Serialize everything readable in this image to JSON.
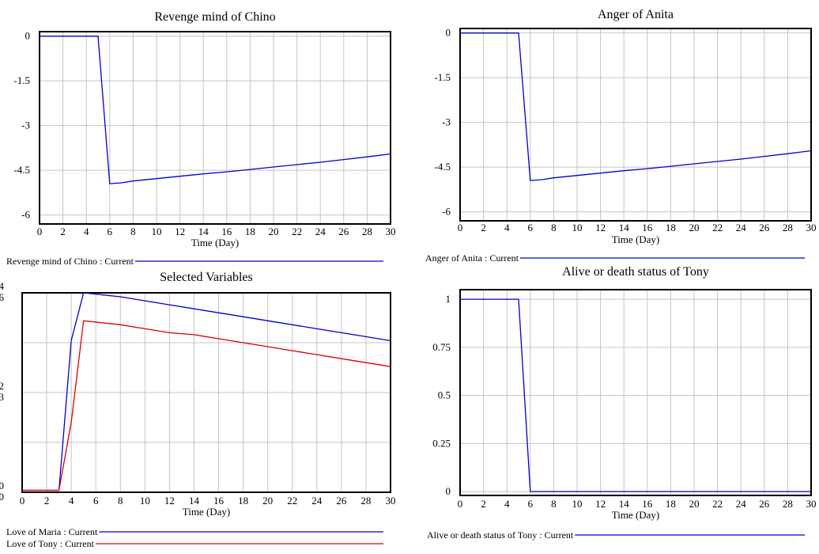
{
  "chart_data": [
    {
      "type": "line",
      "title": "Revenge mind of Chino",
      "xlabel": "Time (Day)",
      "xlim": [
        0,
        30
      ],
      "ylim": [
        -6.3,
        0.15
      ],
      "x_ticks": [
        0,
        2,
        4,
        6,
        8,
        10,
        12,
        14,
        16,
        18,
        20,
        22,
        24,
        26,
        28,
        30
      ],
      "y_ticks": [
        0,
        -1.5,
        -3,
        -4.5,
        -6
      ],
      "y_tick_labels": [
        "0",
        "-1.5",
        "-3",
        "-4.5",
        "-6"
      ],
      "grid": true,
      "series": [
        {
          "name": "Revenge mind of Chino : Current",
          "color": "#0000cc",
          "x": [
            0,
            5,
            6,
            7,
            8,
            10,
            12,
            14,
            16,
            18,
            20,
            22,
            24,
            26,
            28,
            30
          ],
          "y": [
            0,
            0,
            -4.95,
            -4.92,
            -4.86,
            -4.78,
            -4.7,
            -4.62,
            -4.55,
            -4.47,
            -4.39,
            -4.31,
            -4.23,
            -4.14,
            -4.05,
            -3.95
          ]
        }
      ]
    },
    {
      "type": "line",
      "title": "Anger of Anita",
      "xlabel": "Time (Day)",
      "xlim": [
        0,
        30
      ],
      "ylim": [
        -6.3,
        0.15
      ],
      "x_ticks": [
        0,
        2,
        4,
        6,
        8,
        10,
        12,
        14,
        16,
        18,
        20,
        22,
        24,
        26,
        28,
        30
      ],
      "y_ticks": [
        0,
        -1.5,
        -3,
        -4.5,
        -6
      ],
      "y_tick_labels": [
        "0",
        "-1.5",
        "-3",
        "-4.5",
        "-6"
      ],
      "grid": true,
      "series": [
        {
          "name": "Anger of Anita : Current",
          "color": "#0000cc",
          "x": [
            0,
            5,
            6,
            7,
            8,
            10,
            12,
            14,
            16,
            18,
            20,
            22,
            24,
            26,
            28,
            30
          ],
          "y": [
            0,
            0,
            -4.95,
            -4.92,
            -4.86,
            -4.78,
            -4.7,
            -4.62,
            -4.55,
            -4.47,
            -4.39,
            -4.31,
            -4.23,
            -4.14,
            -4.05,
            -3.95
          ]
        }
      ]
    },
    {
      "type": "line",
      "title": "Selected Variables",
      "xlabel": "Time (Day)",
      "xlim": [
        0,
        30
      ],
      "ylim": [
        0,
        1
      ],
      "x_ticks": [
        0,
        2,
        4,
        6,
        8,
        10,
        12,
        14,
        16,
        18,
        20,
        22,
        24,
        26,
        28,
        30
      ],
      "y_ticks": [
        0,
        0.25,
        0.5,
        0.75,
        1
      ],
      "y_tick_labels": [
        "0\n0",
        "",
        "2\n3",
        "",
        "4\n6"
      ],
      "grid": true,
      "series": [
        {
          "name": "Love of Maria : Current",
          "color": "#0000cc",
          "x": [
            0,
            3,
            4,
            5,
            8,
            10,
            12,
            14,
            16,
            18,
            20,
            22,
            24,
            26,
            28,
            30
          ],
          "y": [
            0.01,
            0.01,
            0.76,
            1.0,
            0.98,
            0.96,
            0.94,
            0.92,
            0.9,
            0.88,
            0.86,
            0.84,
            0.82,
            0.8,
            0.78,
            0.76
          ]
        },
        {
          "name": "Love of Tony : Current",
          "color": "#dd0000",
          "x": [
            0,
            3,
            4,
            5,
            8,
            10,
            12,
            14,
            16,
            18,
            20,
            22,
            24,
            26,
            28,
            30
          ],
          "y": [
            0.01,
            0.01,
            0.35,
            0.86,
            0.84,
            0.82,
            0.8,
            0.79,
            0.77,
            0.75,
            0.73,
            0.71,
            0.69,
            0.67,
            0.65,
            0.63
          ]
        }
      ]
    },
    {
      "type": "line",
      "title": "Alive or death status of Tony",
      "xlabel": "Time (Day)",
      "xlim": [
        0,
        30
      ],
      "ylim": [
        -0.02,
        1.05
      ],
      "x_ticks": [
        0,
        2,
        4,
        6,
        8,
        10,
        12,
        14,
        16,
        18,
        20,
        22,
        24,
        26,
        28,
        30
      ],
      "y_ticks": [
        0,
        0.25,
        0.5,
        0.75,
        1
      ],
      "y_tick_labels": [
        "0",
        "0.25",
        "0.5",
        "0.75",
        "1"
      ],
      "grid": true,
      "series": [
        {
          "name": "Alive or death status of Tony : Current",
          "color": "#0000cc",
          "x": [
            0,
            5,
            6,
            30
          ],
          "y": [
            1,
            1,
            0,
            0
          ]
        }
      ]
    }
  ]
}
